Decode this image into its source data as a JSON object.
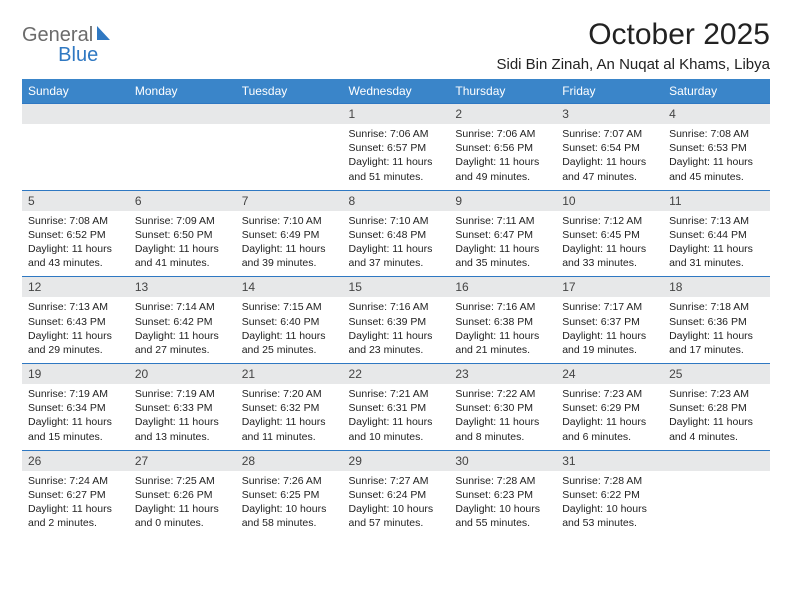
{
  "logo": {
    "part1": "General",
    "part2": "Blue"
  },
  "title": "October 2025",
  "location": "Sidi Bin Zinah, An Nuqat al Khams, Libya",
  "colors": {
    "header_bg": "#3a85c9",
    "daynum_bg": "#e7e8e9",
    "rule": "#2f78c2",
    "logo_gray": "#6b6b6b",
    "logo_blue": "#2f78c2",
    "text": "#222222",
    "background": "#ffffff"
  },
  "weekdays": [
    "Sunday",
    "Monday",
    "Tuesday",
    "Wednesday",
    "Thursday",
    "Friday",
    "Saturday"
  ],
  "weeks": [
    [
      null,
      null,
      null,
      {
        "n": "1",
        "sr": "Sunrise: 7:06 AM",
        "ss": "Sunset: 6:57 PM",
        "d1": "Daylight: 11 hours",
        "d2": "and 51 minutes."
      },
      {
        "n": "2",
        "sr": "Sunrise: 7:06 AM",
        "ss": "Sunset: 6:56 PM",
        "d1": "Daylight: 11 hours",
        "d2": "and 49 minutes."
      },
      {
        "n": "3",
        "sr": "Sunrise: 7:07 AM",
        "ss": "Sunset: 6:54 PM",
        "d1": "Daylight: 11 hours",
        "d2": "and 47 minutes."
      },
      {
        "n": "4",
        "sr": "Sunrise: 7:08 AM",
        "ss": "Sunset: 6:53 PM",
        "d1": "Daylight: 11 hours",
        "d2": "and 45 minutes."
      }
    ],
    [
      {
        "n": "5",
        "sr": "Sunrise: 7:08 AM",
        "ss": "Sunset: 6:52 PM",
        "d1": "Daylight: 11 hours",
        "d2": "and 43 minutes."
      },
      {
        "n": "6",
        "sr": "Sunrise: 7:09 AM",
        "ss": "Sunset: 6:50 PM",
        "d1": "Daylight: 11 hours",
        "d2": "and 41 minutes."
      },
      {
        "n": "7",
        "sr": "Sunrise: 7:10 AM",
        "ss": "Sunset: 6:49 PM",
        "d1": "Daylight: 11 hours",
        "d2": "and 39 minutes."
      },
      {
        "n": "8",
        "sr": "Sunrise: 7:10 AM",
        "ss": "Sunset: 6:48 PM",
        "d1": "Daylight: 11 hours",
        "d2": "and 37 minutes."
      },
      {
        "n": "9",
        "sr": "Sunrise: 7:11 AM",
        "ss": "Sunset: 6:47 PM",
        "d1": "Daylight: 11 hours",
        "d2": "and 35 minutes."
      },
      {
        "n": "10",
        "sr": "Sunrise: 7:12 AM",
        "ss": "Sunset: 6:45 PM",
        "d1": "Daylight: 11 hours",
        "d2": "and 33 minutes."
      },
      {
        "n": "11",
        "sr": "Sunrise: 7:13 AM",
        "ss": "Sunset: 6:44 PM",
        "d1": "Daylight: 11 hours",
        "d2": "and 31 minutes."
      }
    ],
    [
      {
        "n": "12",
        "sr": "Sunrise: 7:13 AM",
        "ss": "Sunset: 6:43 PM",
        "d1": "Daylight: 11 hours",
        "d2": "and 29 minutes."
      },
      {
        "n": "13",
        "sr": "Sunrise: 7:14 AM",
        "ss": "Sunset: 6:42 PM",
        "d1": "Daylight: 11 hours",
        "d2": "and 27 minutes."
      },
      {
        "n": "14",
        "sr": "Sunrise: 7:15 AM",
        "ss": "Sunset: 6:40 PM",
        "d1": "Daylight: 11 hours",
        "d2": "and 25 minutes."
      },
      {
        "n": "15",
        "sr": "Sunrise: 7:16 AM",
        "ss": "Sunset: 6:39 PM",
        "d1": "Daylight: 11 hours",
        "d2": "and 23 minutes."
      },
      {
        "n": "16",
        "sr": "Sunrise: 7:16 AM",
        "ss": "Sunset: 6:38 PM",
        "d1": "Daylight: 11 hours",
        "d2": "and 21 minutes."
      },
      {
        "n": "17",
        "sr": "Sunrise: 7:17 AM",
        "ss": "Sunset: 6:37 PM",
        "d1": "Daylight: 11 hours",
        "d2": "and 19 minutes."
      },
      {
        "n": "18",
        "sr": "Sunrise: 7:18 AM",
        "ss": "Sunset: 6:36 PM",
        "d1": "Daylight: 11 hours",
        "d2": "and 17 minutes."
      }
    ],
    [
      {
        "n": "19",
        "sr": "Sunrise: 7:19 AM",
        "ss": "Sunset: 6:34 PM",
        "d1": "Daylight: 11 hours",
        "d2": "and 15 minutes."
      },
      {
        "n": "20",
        "sr": "Sunrise: 7:19 AM",
        "ss": "Sunset: 6:33 PM",
        "d1": "Daylight: 11 hours",
        "d2": "and 13 minutes."
      },
      {
        "n": "21",
        "sr": "Sunrise: 7:20 AM",
        "ss": "Sunset: 6:32 PM",
        "d1": "Daylight: 11 hours",
        "d2": "and 11 minutes."
      },
      {
        "n": "22",
        "sr": "Sunrise: 7:21 AM",
        "ss": "Sunset: 6:31 PM",
        "d1": "Daylight: 11 hours",
        "d2": "and 10 minutes."
      },
      {
        "n": "23",
        "sr": "Sunrise: 7:22 AM",
        "ss": "Sunset: 6:30 PM",
        "d1": "Daylight: 11 hours",
        "d2": "and 8 minutes."
      },
      {
        "n": "24",
        "sr": "Sunrise: 7:23 AM",
        "ss": "Sunset: 6:29 PM",
        "d1": "Daylight: 11 hours",
        "d2": "and 6 minutes."
      },
      {
        "n": "25",
        "sr": "Sunrise: 7:23 AM",
        "ss": "Sunset: 6:28 PM",
        "d1": "Daylight: 11 hours",
        "d2": "and 4 minutes."
      }
    ],
    [
      {
        "n": "26",
        "sr": "Sunrise: 7:24 AM",
        "ss": "Sunset: 6:27 PM",
        "d1": "Daylight: 11 hours",
        "d2": "and 2 minutes."
      },
      {
        "n": "27",
        "sr": "Sunrise: 7:25 AM",
        "ss": "Sunset: 6:26 PM",
        "d1": "Daylight: 11 hours",
        "d2": "and 0 minutes."
      },
      {
        "n": "28",
        "sr": "Sunrise: 7:26 AM",
        "ss": "Sunset: 6:25 PM",
        "d1": "Daylight: 10 hours",
        "d2": "and 58 minutes."
      },
      {
        "n": "29",
        "sr": "Sunrise: 7:27 AM",
        "ss": "Sunset: 6:24 PM",
        "d1": "Daylight: 10 hours",
        "d2": "and 57 minutes."
      },
      {
        "n": "30",
        "sr": "Sunrise: 7:28 AM",
        "ss": "Sunset: 6:23 PM",
        "d1": "Daylight: 10 hours",
        "d2": "and 55 minutes."
      },
      {
        "n": "31",
        "sr": "Sunrise: 7:28 AM",
        "ss": "Sunset: 6:22 PM",
        "d1": "Daylight: 10 hours",
        "d2": "and 53 minutes."
      },
      null
    ]
  ]
}
